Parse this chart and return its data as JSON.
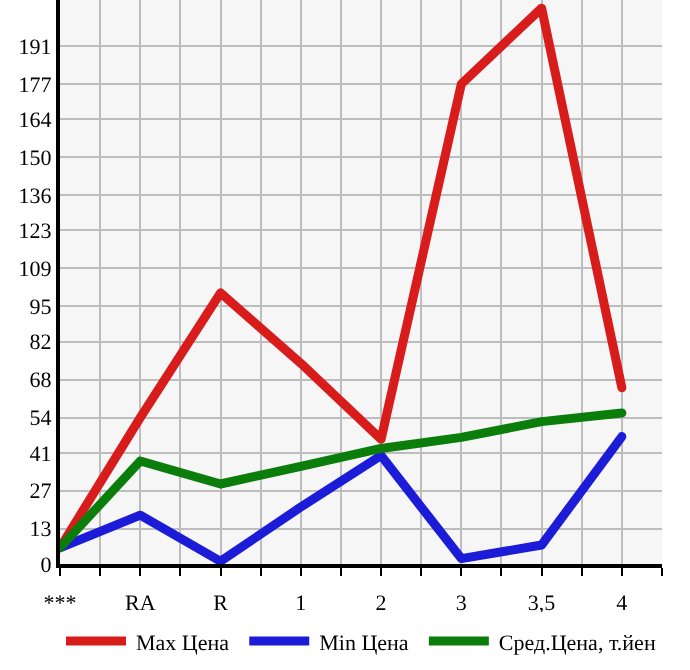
{
  "chart_data": {
    "type": "line",
    "categories": [
      "***",
      "RA",
      "R",
      "1",
      "2",
      "3",
      "3,5",
      "4"
    ],
    "series": [
      {
        "name": "Max Цена",
        "color": "#d81b1b",
        "values": [
          6,
          54,
          100,
          74,
          46,
          177,
          205,
          65
        ]
      },
      {
        "name": "Min Цена",
        "color": "#1b1bd8",
        "values": [
          6,
          18,
          1,
          21,
          40,
          2,
          7,
          47
        ]
      },
      {
        "name": "Сред.Цена, т.йен",
        "color": "#0a7d0a",
        "values": [
          6,
          38,
          29.5,
          36,
          42.6,
          46.7,
          52.5,
          55.7
        ]
      }
    ],
    "ylim": [
      0,
      208
    ],
    "yticks": [
      0,
      13,
      27,
      41,
      54,
      68,
      82,
      95,
      109,
      123,
      136,
      150,
      164,
      177,
      191
    ],
    "grid": true,
    "legend": "bottom",
    "marker": "none",
    "line_style": "solid"
  }
}
